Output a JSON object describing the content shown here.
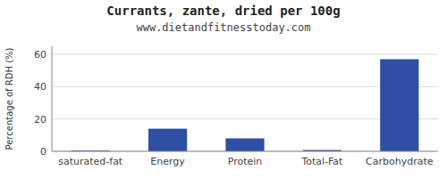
{
  "chart_data": {
    "type": "bar",
    "title": "Currants, zante, dried per 100g",
    "subtitle": "www.dietandfitnesstoday.com",
    "categories": [
      "saturated-fat",
      "Energy",
      "Protein",
      "Total-Fat",
      "Carbohydrate"
    ],
    "values": [
      0.5,
      14,
      8,
      0.8,
      57
    ],
    "color": "#2e4fa3",
    "ylabel": "Percentage of RDH (%)",
    "ylim": [
      0,
      65
    ],
    "yticks": [
      0,
      20,
      40,
      60
    ],
    "grid": true
  }
}
